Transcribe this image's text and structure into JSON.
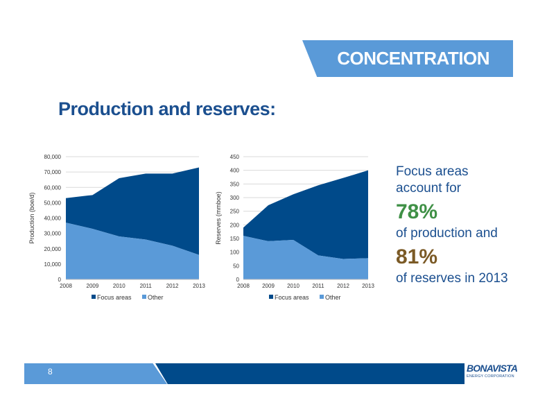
{
  "banner": {
    "label": "CONCENTRATION"
  },
  "slide_title": "Production and reserves:",
  "chart_data": [
    {
      "type": "area",
      "stacked": true,
      "x": [
        "2008",
        "2009",
        "2010",
        "2011",
        "2012",
        "2013"
      ],
      "series": [
        {
          "name": "Focus areas",
          "values": [
            16000,
            22000,
            38000,
            43000,
            47000,
            57000
          ],
          "color": "#004a8a"
        },
        {
          "name": "Other",
          "values": [
            37000,
            33000,
            28000,
            26000,
            22000,
            16000
          ],
          "color": "#5a9ad8"
        }
      ],
      "ylabel": "Production (boe/d)",
      "ylim": [
        0,
        80000
      ],
      "yticks": [
        "0",
        "10,000",
        "20,000",
        "30,000",
        "40,000",
        "50,000",
        "60,000",
        "70,000",
        "80,000"
      ],
      "grid": true,
      "legend": "bottom"
    },
    {
      "type": "area",
      "stacked": true,
      "x": [
        "2008",
        "2009",
        "2010",
        "2011",
        "2012",
        "2013"
      ],
      "series": [
        {
          "name": "Focus areas",
          "values": [
            30,
            132,
            167,
            257,
            297,
            322
          ],
          "color": "#004a8a"
        },
        {
          "name": "Other",
          "values": [
            160,
            140,
            145,
            88,
            75,
            78
          ],
          "color": "#5a9ad8"
        }
      ],
      "ylabel": "Reserves (mmboe)",
      "ylim": [
        0,
        450
      ],
      "yticks": [
        "0",
        "50",
        "100",
        "150",
        "200",
        "250",
        "300",
        "350",
        "400",
        "450"
      ],
      "grid": true,
      "legend": "bottom"
    }
  ],
  "summary": {
    "line1": "Focus areas",
    "line2": "account for",
    "production_pct": "78%",
    "line3": "of production and",
    "reserves_pct": "81%",
    "line4": "of reserves in 2013"
  },
  "footer": {
    "page_number": "8",
    "logo_name": "BONAVISTA",
    "logo_sub": "ENERGY CORPORATION"
  }
}
